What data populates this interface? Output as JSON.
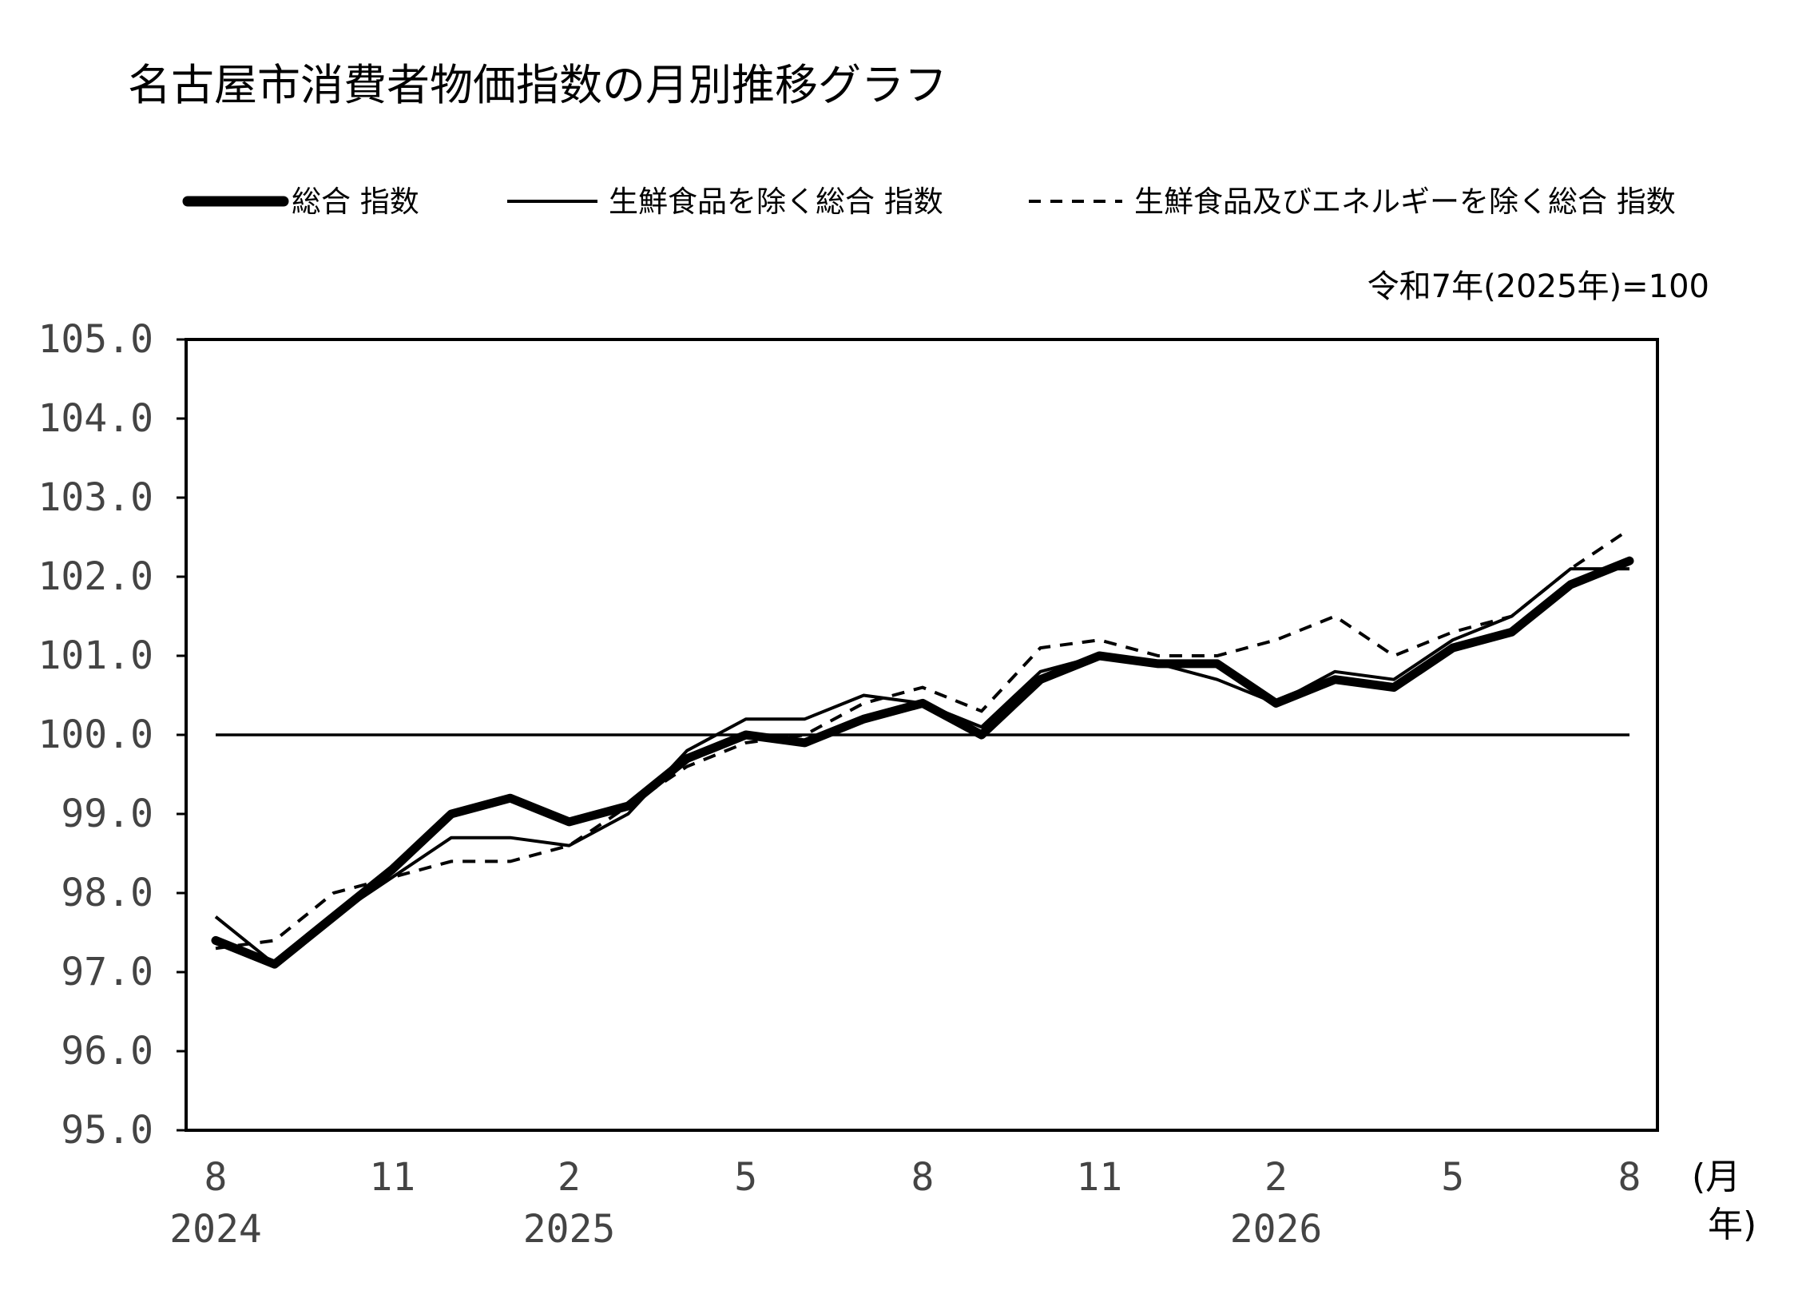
{
  "chart_data": {
    "type": "line",
    "title": "名古屋市消費者物価指数の月別推移グラフ",
    "base_note": "令和7年(2025年)=100",
    "reference_value": 100,
    "ylim": [
      95,
      105
    ],
    "yticks": [
      "105.0",
      "104.0",
      "103.0",
      "102.0",
      "101.0",
      "100.0",
      "99.0",
      "98.0",
      "97.0",
      "96.0",
      "95.0"
    ],
    "yticks_values": [
      105,
      104,
      103,
      102,
      101,
      100,
      99,
      98,
      97,
      96,
      95
    ],
    "x": [
      "2024-08",
      "2024-09",
      "2024-10",
      "2024-11",
      "2024-12",
      "2025-01",
      "2025-02",
      "2025-03",
      "2025-04",
      "2025-05",
      "2025-06",
      "2025-07",
      "2025-08",
      "2025-09",
      "2025-10",
      "2025-11",
      "2025-12",
      "2026-01",
      "2026-02",
      "2026-03",
      "2026-04",
      "2026-05",
      "2026-06",
      "2026-07",
      "2026-08"
    ],
    "xtick_months": [
      {
        "index": 0,
        "label": "8"
      },
      {
        "index": 3,
        "label": "11"
      },
      {
        "index": 6,
        "label": "2"
      },
      {
        "index": 9,
        "label": "5"
      },
      {
        "index": 12,
        "label": "8"
      },
      {
        "index": 15,
        "label": "11"
      },
      {
        "index": 18,
        "label": "2"
      },
      {
        "index": 21,
        "label": "5"
      },
      {
        "index": 24,
        "label": "8"
      }
    ],
    "xtick_years": [
      {
        "index": 0,
        "label": "2024"
      },
      {
        "index": 6,
        "label": "2025"
      },
      {
        "index": 18,
        "label": "2026"
      }
    ],
    "unit_month": "(月",
    "unit_year": "年)",
    "legend_position": "top",
    "series": [
      {
        "name": "総合  指数",
        "style": "thick",
        "values": [
          97.4,
          97.1,
          97.7,
          98.3,
          99.0,
          99.2,
          98.9,
          99.1,
          99.7,
          100.0,
          99.9,
          100.2,
          100.4,
          100.0,
          100.7,
          101.0,
          100.9,
          100.9,
          100.4,
          100.7,
          100.6,
          101.1,
          101.3,
          101.9,
          102.2
        ]
      },
      {
        "name": "生鮮食品を除く総合  指数",
        "style": "thin",
        "values": [
          97.7,
          97.1,
          97.7,
          98.2,
          98.7,
          98.7,
          98.6,
          99.0,
          99.8,
          100.2,
          100.2,
          100.5,
          100.4,
          100.1,
          100.8,
          101.0,
          100.9,
          100.7,
          100.4,
          100.8,
          100.7,
          101.2,
          101.5,
          102.1,
          102.1
        ]
      },
      {
        "name": "生鮮食品及びエネルギーを除く総合  指数",
        "style": "dashed",
        "values": [
          97.3,
          97.4,
          98.0,
          98.2,
          98.4,
          98.4,
          98.6,
          99.1,
          99.6,
          99.9,
          100.0,
          100.4,
          100.6,
          100.3,
          101.1,
          101.2,
          101.0,
          101.0,
          101.2,
          101.5,
          101.0,
          101.3,
          101.5,
          102.1,
          102.6
        ]
      }
    ]
  }
}
